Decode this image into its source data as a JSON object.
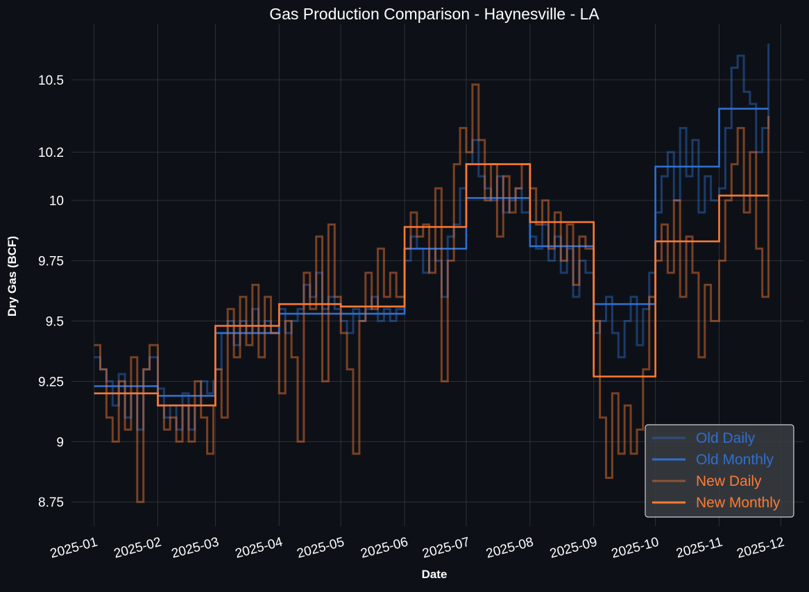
{
  "chart_data": {
    "type": "line",
    "title": "Gas Production Comparison - Haynesville - LA",
    "xlabel": "Date",
    "ylabel": "Dry Gas (BCF)",
    "x_ticks": [
      "2025-01",
      "2025-02",
      "2025-03",
      "2025-04",
      "2025-05",
      "2025-06",
      "2025-07",
      "2025-08",
      "2025-09",
      "2025-10",
      "2025-11",
      "2025-12"
    ],
    "y_ticks": [
      8.75,
      9,
      9.25,
      9.5,
      9.75,
      10,
      10.2,
      10.5
    ],
    "y_tick_labels": [
      "8.75",
      "9",
      "9.25",
      "9.5",
      "9.75",
      "10",
      "10.2",
      "10.5"
    ],
    "xlim": [
      "2024-12-21",
      "2025-12-12"
    ],
    "ylim": [
      8.65,
      10.73
    ],
    "grid": true,
    "legend_position": "lower-right",
    "colors": {
      "old": "#2f6fd0",
      "new": "#ff7a33",
      "background": "#0d1117",
      "grid": "#3a3f46",
      "text": "#ffffff"
    },
    "series": [
      {
        "name": "Old Daily",
        "style": "step-daily",
        "color": "#2f6fd0",
        "opacity": 0.45,
        "points": [
          [
            "2025-01-01",
            9.35
          ],
          [
            "2025-01-04",
            9.3
          ],
          [
            "2025-01-07",
            9.25
          ],
          [
            "2025-01-10",
            9.15
          ],
          [
            "2025-01-13",
            9.28
          ],
          [
            "2025-01-16",
            9.1
          ],
          [
            "2025-01-19",
            9.2
          ],
          [
            "2025-01-22",
            9.05
          ],
          [
            "2025-01-25",
            9.3
          ],
          [
            "2025-01-28",
            9.35
          ],
          [
            "2025-02-01",
            9.22
          ],
          [
            "2025-02-04",
            9.1
          ],
          [
            "2025-02-07",
            9.15
          ],
          [
            "2025-02-10",
            9.05
          ],
          [
            "2025-02-13",
            9.2
          ],
          [
            "2025-02-16",
            9.05
          ],
          [
            "2025-02-19",
            9.15
          ],
          [
            "2025-02-22",
            9.25
          ],
          [
            "2025-02-25",
            9.2
          ],
          [
            "2025-02-28",
            9.25
          ],
          [
            "2025-03-01",
            9.3
          ],
          [
            "2025-03-04",
            9.45
          ],
          [
            "2025-03-07",
            9.5
          ],
          [
            "2025-03-10",
            9.4
          ],
          [
            "2025-03-13",
            9.5
          ],
          [
            "2025-03-16",
            9.45
          ],
          [
            "2025-03-19",
            9.55
          ],
          [
            "2025-03-22",
            9.45
          ],
          [
            "2025-03-25",
            9.5
          ],
          [
            "2025-03-28",
            9.45
          ],
          [
            "2025-04-01",
            9.55
          ],
          [
            "2025-04-04",
            9.45
          ],
          [
            "2025-04-07",
            9.5
          ],
          [
            "2025-04-10",
            9.55
          ],
          [
            "2025-04-13",
            9.65
          ],
          [
            "2025-04-16",
            9.6
          ],
          [
            "2025-04-19",
            9.7
          ],
          [
            "2025-04-22",
            9.55
          ],
          [
            "2025-04-25",
            9.6
          ],
          [
            "2025-04-28",
            9.55
          ],
          [
            "2025-05-01",
            9.5
          ],
          [
            "2025-05-04",
            9.45
          ],
          [
            "2025-05-07",
            9.55
          ],
          [
            "2025-05-10",
            9.5
          ],
          [
            "2025-05-13",
            9.55
          ],
          [
            "2025-05-16",
            9.6
          ],
          [
            "2025-05-19",
            9.5
          ],
          [
            "2025-05-22",
            9.55
          ],
          [
            "2025-05-25",
            9.5
          ],
          [
            "2025-05-28",
            9.55
          ],
          [
            "2025-06-01",
            9.75
          ],
          [
            "2025-06-04",
            9.85
          ],
          [
            "2025-06-07",
            9.8
          ],
          [
            "2025-06-10",
            9.7
          ],
          [
            "2025-06-13",
            9.8
          ],
          [
            "2025-06-16",
            9.75
          ],
          [
            "2025-06-19",
            9.6
          ],
          [
            "2025-06-22",
            9.85
          ],
          [
            "2025-06-25",
            9.9
          ],
          [
            "2025-06-28",
            10.05
          ],
          [
            "2025-07-01",
            10.15
          ],
          [
            "2025-07-04",
            10.25
          ],
          [
            "2025-07-07",
            10.1
          ],
          [
            "2025-07-10",
            10.05
          ],
          [
            "2025-07-13",
            10.0
          ],
          [
            "2025-07-16",
            10.1
          ],
          [
            "2025-07-19",
            9.95
          ],
          [
            "2025-07-22",
            10.0
          ],
          [
            "2025-07-25",
            10.05
          ],
          [
            "2025-07-28",
            9.95
          ],
          [
            "2025-08-01",
            9.85
          ],
          [
            "2025-08-04",
            9.8
          ],
          [
            "2025-08-07",
            9.9
          ],
          [
            "2025-08-10",
            9.75
          ],
          [
            "2025-08-13",
            9.85
          ],
          [
            "2025-08-16",
            9.7
          ],
          [
            "2025-08-19",
            9.8
          ],
          [
            "2025-08-22",
            9.6
          ],
          [
            "2025-08-25",
            9.75
          ],
          [
            "2025-08-28",
            9.7
          ],
          [
            "2025-09-01",
            9.45
          ],
          [
            "2025-09-04",
            9.5
          ],
          [
            "2025-09-07",
            9.6
          ],
          [
            "2025-09-10",
            9.45
          ],
          [
            "2025-09-13",
            9.35
          ],
          [
            "2025-09-16",
            9.5
          ],
          [
            "2025-09-19",
            9.6
          ],
          [
            "2025-09-22",
            9.4
          ],
          [
            "2025-09-25",
            9.55
          ],
          [
            "2025-09-28",
            9.7
          ],
          [
            "2025-10-01",
            9.95
          ],
          [
            "2025-10-04",
            10.1
          ],
          [
            "2025-10-07",
            10.2
          ],
          [
            "2025-10-10",
            10.0
          ],
          [
            "2025-10-13",
            10.3
          ],
          [
            "2025-10-16",
            10.1
          ],
          [
            "2025-10-19",
            10.25
          ],
          [
            "2025-10-22",
            9.95
          ],
          [
            "2025-10-25",
            10.1
          ],
          [
            "2025-10-28",
            10.0
          ],
          [
            "2025-11-01",
            10.05
          ],
          [
            "2025-11-04",
            10.3
          ],
          [
            "2025-11-07",
            10.55
          ],
          [
            "2025-11-10",
            10.6
          ],
          [
            "2025-11-13",
            10.45
          ],
          [
            "2025-11-16",
            10.4
          ],
          [
            "2025-11-19",
            10.2
          ],
          [
            "2025-11-22",
            10.3
          ],
          [
            "2025-11-25",
            10.65
          ]
        ]
      },
      {
        "name": "Old Monthly",
        "style": "step-monthly",
        "color": "#2f6fd0",
        "opacity": 1,
        "points": [
          [
            "2025-01-01",
            9.23
          ],
          [
            "2025-02-01",
            9.19
          ],
          [
            "2025-03-01",
            9.45
          ],
          [
            "2025-04-01",
            9.53
          ],
          [
            "2025-05-01",
            9.53
          ],
          [
            "2025-06-01",
            9.8
          ],
          [
            "2025-07-01",
            10.01
          ],
          [
            "2025-08-01",
            9.81
          ],
          [
            "2025-09-01",
            9.57
          ],
          [
            "2025-10-01",
            10.14
          ],
          [
            "2025-11-01",
            10.38
          ],
          [
            "2025-11-25",
            10.38
          ]
        ]
      },
      {
        "name": "New Daily",
        "style": "step-daily",
        "color": "#ff7a33",
        "opacity": 0.45,
        "points": [
          [
            "2025-01-01",
            9.4
          ],
          [
            "2025-01-04",
            9.3
          ],
          [
            "2025-01-07",
            9.1
          ],
          [
            "2025-01-10",
            9.0
          ],
          [
            "2025-01-13",
            9.25
          ],
          [
            "2025-01-16",
            9.05
          ],
          [
            "2025-01-19",
            9.35
          ],
          [
            "2025-01-22",
            8.75
          ],
          [
            "2025-01-25",
            9.3
          ],
          [
            "2025-01-28",
            9.4
          ],
          [
            "2025-02-01",
            9.15
          ],
          [
            "2025-02-04",
            9.05
          ],
          [
            "2025-02-07",
            9.1
          ],
          [
            "2025-02-10",
            9.0
          ],
          [
            "2025-02-13",
            9.15
          ],
          [
            "2025-02-16",
            9.0
          ],
          [
            "2025-02-19",
            9.25
          ],
          [
            "2025-02-22",
            9.1
          ],
          [
            "2025-02-25",
            8.95
          ],
          [
            "2025-02-28",
            9.15
          ],
          [
            "2025-03-01",
            9.3
          ],
          [
            "2025-03-04",
            9.1
          ],
          [
            "2025-03-07",
            9.55
          ],
          [
            "2025-03-10",
            9.35
          ],
          [
            "2025-03-13",
            9.6
          ],
          [
            "2025-03-16",
            9.4
          ],
          [
            "2025-03-19",
            9.65
          ],
          [
            "2025-03-22",
            9.35
          ],
          [
            "2025-03-25",
            9.6
          ],
          [
            "2025-03-28",
            9.45
          ],
          [
            "2025-04-01",
            9.2
          ],
          [
            "2025-04-04",
            9.5
          ],
          [
            "2025-04-07",
            9.35
          ],
          [
            "2025-04-10",
            9.0
          ],
          [
            "2025-04-13",
            9.7
          ],
          [
            "2025-04-16",
            9.55
          ],
          [
            "2025-04-19",
            9.85
          ],
          [
            "2025-04-22",
            9.25
          ],
          [
            "2025-04-25",
            9.9
          ],
          [
            "2025-04-28",
            9.6
          ],
          [
            "2025-05-01",
            9.45
          ],
          [
            "2025-05-04",
            9.3
          ],
          [
            "2025-05-07",
            8.95
          ],
          [
            "2025-05-10",
            9.5
          ],
          [
            "2025-05-13",
            9.7
          ],
          [
            "2025-05-16",
            9.55
          ],
          [
            "2025-05-19",
            9.8
          ],
          [
            "2025-05-22",
            9.6
          ],
          [
            "2025-05-25",
            9.7
          ],
          [
            "2025-05-28",
            9.6
          ],
          [
            "2025-06-01",
            9.8
          ],
          [
            "2025-06-04",
            9.95
          ],
          [
            "2025-06-07",
            9.85
          ],
          [
            "2025-06-10",
            9.9
          ],
          [
            "2025-06-13",
            9.7
          ],
          [
            "2025-06-16",
            10.05
          ],
          [
            "2025-06-19",
            9.25
          ],
          [
            "2025-06-22",
            9.75
          ],
          [
            "2025-06-25",
            10.15
          ],
          [
            "2025-06-28",
            10.3
          ],
          [
            "2025-07-01",
            10.2
          ],
          [
            "2025-07-04",
            10.48
          ],
          [
            "2025-07-07",
            10.25
          ],
          [
            "2025-07-10",
            10.0
          ],
          [
            "2025-07-13",
            10.15
          ],
          [
            "2025-07-16",
            9.85
          ],
          [
            "2025-07-19",
            10.1
          ],
          [
            "2025-07-22",
            9.95
          ],
          [
            "2025-07-25",
            10.05
          ],
          [
            "2025-07-28",
            10.15
          ],
          [
            "2025-08-01",
            10.05
          ],
          [
            "2025-08-04",
            9.9
          ],
          [
            "2025-08-07",
            10.0
          ],
          [
            "2025-08-10",
            9.8
          ],
          [
            "2025-08-13",
            9.95
          ],
          [
            "2025-08-16",
            9.75
          ],
          [
            "2025-08-19",
            9.9
          ],
          [
            "2025-08-22",
            9.65
          ],
          [
            "2025-08-25",
            9.85
          ],
          [
            "2025-08-28",
            9.8
          ],
          [
            "2025-09-01",
            9.5
          ],
          [
            "2025-09-04",
            9.1
          ],
          [
            "2025-09-07",
            8.85
          ],
          [
            "2025-09-10",
            9.2
          ],
          [
            "2025-09-13",
            8.95
          ],
          [
            "2025-09-16",
            9.15
          ],
          [
            "2025-09-19",
            8.95
          ],
          [
            "2025-09-22",
            9.05
          ],
          [
            "2025-09-25",
            9.3
          ],
          [
            "2025-09-28",
            9.6
          ],
          [
            "2025-10-01",
            9.75
          ],
          [
            "2025-10-04",
            9.9
          ],
          [
            "2025-10-07",
            9.7
          ],
          [
            "2025-10-10",
            10.0
          ],
          [
            "2025-10-13",
            9.6
          ],
          [
            "2025-10-16",
            9.85
          ],
          [
            "2025-10-19",
            9.7
          ],
          [
            "2025-10-22",
            9.35
          ],
          [
            "2025-10-25",
            9.65
          ],
          [
            "2025-10-28",
            9.5
          ],
          [
            "2025-11-01",
            9.75
          ],
          [
            "2025-11-04",
            10.0
          ],
          [
            "2025-11-07",
            10.15
          ],
          [
            "2025-11-10",
            10.3
          ],
          [
            "2025-11-13",
            9.95
          ],
          [
            "2025-11-16",
            10.2
          ],
          [
            "2025-11-19",
            9.8
          ],
          [
            "2025-11-22",
            9.6
          ],
          [
            "2025-11-25",
            10.35
          ]
        ]
      },
      {
        "name": "New Monthly",
        "style": "step-monthly",
        "color": "#ff7a33",
        "opacity": 1,
        "points": [
          [
            "2025-01-01",
            9.2
          ],
          [
            "2025-02-01",
            9.15
          ],
          [
            "2025-03-01",
            9.48
          ],
          [
            "2025-04-01",
            9.57
          ],
          [
            "2025-05-01",
            9.56
          ],
          [
            "2025-06-01",
            9.89
          ],
          [
            "2025-07-01",
            10.15
          ],
          [
            "2025-08-01",
            9.91
          ],
          [
            "2025-09-01",
            9.27
          ],
          [
            "2025-10-01",
            9.83
          ],
          [
            "2025-11-01",
            10.02
          ],
          [
            "2025-11-25",
            10.02
          ]
        ]
      }
    ]
  }
}
